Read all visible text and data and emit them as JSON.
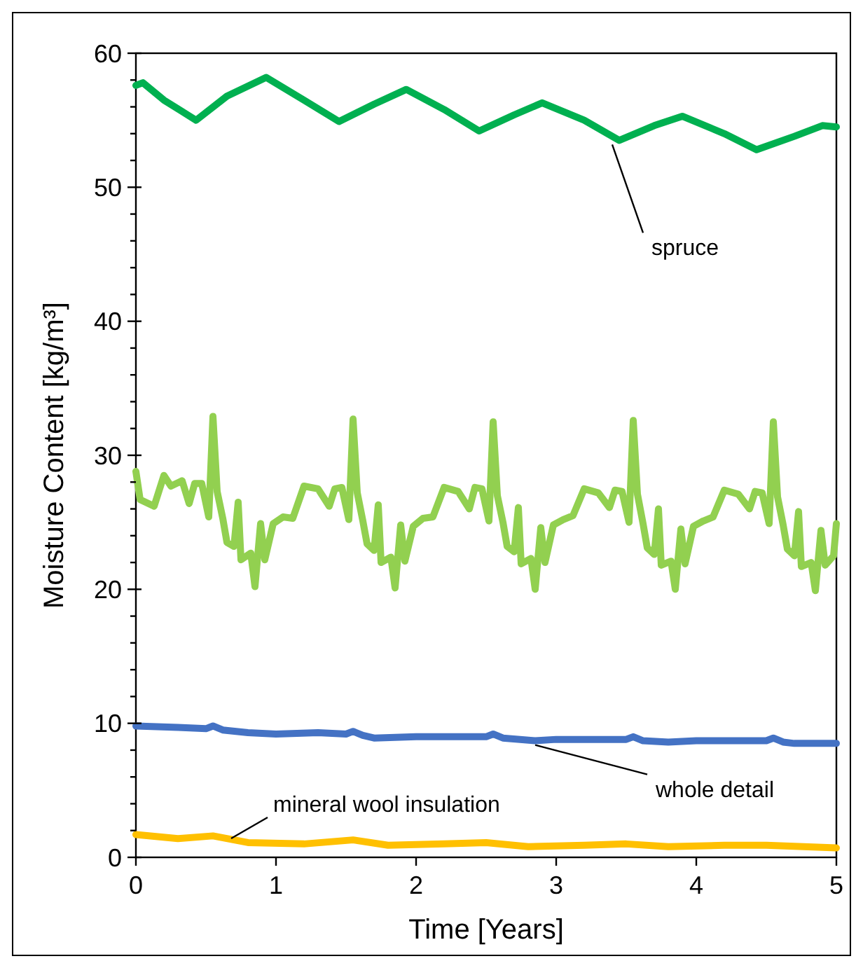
{
  "chart_data": {
    "type": "line",
    "xlabel": "Time [Years]",
    "ylabel": "Moisture Content [kg/m³]",
    "xlim": [
      0,
      5
    ],
    "xticks": [
      0,
      1,
      2,
      3,
      4,
      5
    ],
    "ylim": [
      0,
      60
    ],
    "yticks": [
      0,
      {
        "value": 2,
        "label": null
      },
      {
        "value": 4,
        "label": null
      },
      {
        "value": 6,
        "label": null
      },
      {
        "value": 8,
        "label": null
      },
      10,
      {
        "value": 12,
        "label": null
      },
      {
        "value": 14,
        "label": null
      },
      {
        "value": 16,
        "label": null
      },
      {
        "value": 18,
        "label": null
      },
      20,
      {
        "value": 22,
        "label": null
      },
      {
        "value": 24,
        "label": null
      },
      {
        "value": 26,
        "label": null
      },
      {
        "value": 28,
        "label": null
      },
      30,
      {
        "value": 32,
        "label": null
      },
      {
        "value": 34,
        "label": null
      },
      {
        "value": 36,
        "label": null
      },
      {
        "value": 38,
        "label": null
      },
      40,
      {
        "value": 42,
        "label": null
      },
      {
        "value": 44,
        "label": null
      },
      {
        "value": 46,
        "label": null
      },
      {
        "value": 48,
        "label": null
      },
      50,
      {
        "value": 52,
        "label": null
      },
      {
        "value": 54,
        "label": null
      },
      {
        "value": 56,
        "label": null
      },
      {
        "value": 58,
        "label": null
      },
      60
    ],
    "grid": false,
    "marker": "none",
    "line_style": "solid",
    "series": [
      {
        "name": "spruce",
        "color": "#00b050",
        "x": [
          0,
          0.05,
          0.2,
          0.43,
          0.65,
          0.93,
          1.2,
          1.45,
          1.7,
          1.93,
          2.2,
          2.45,
          2.7,
          2.9,
          3.2,
          3.45,
          3.7,
          3.9,
          4.2,
          4.43,
          4.7,
          4.9,
          5
        ],
        "values": [
          57.6,
          57.8,
          56.5,
          55.0,
          56.8,
          58.2,
          56.5,
          54.9,
          56.2,
          57.3,
          55.8,
          54.2,
          55.4,
          56.3,
          55.0,
          53.5,
          54.6,
          55.3,
          54.0,
          52.8,
          53.8,
          54.6,
          54.5
        ]
      },
      {
        "color": "#92d050",
        "x": [
          0,
          0.03,
          0.13,
          0.2,
          0.25,
          0.33,
          0.38,
          0.42,
          0.47,
          0.52,
          0.55,
          0.58,
          0.62,
          0.65,
          0.7,
          0.73,
          0.75,
          0.82,
          0.85,
          0.89,
          0.92,
          0.98,
          1.05,
          1.12,
          1.2,
          1.3,
          1.38,
          1.42,
          1.47,
          1.52,
          1.55,
          1.58,
          1.62,
          1.65,
          1.7,
          1.73,
          1.75,
          1.82,
          1.85,
          1.89,
          1.92,
          1.98,
          2.05,
          2.12,
          2.2,
          2.3,
          2.38,
          2.42,
          2.47,
          2.52,
          2.55,
          2.58,
          2.62,
          2.65,
          2.7,
          2.73,
          2.75,
          2.82,
          2.85,
          2.89,
          2.92,
          2.98,
          3.05,
          3.12,
          3.2,
          3.3,
          3.38,
          3.42,
          3.47,
          3.52,
          3.55,
          3.58,
          3.62,
          3.65,
          3.7,
          3.73,
          3.75,
          3.82,
          3.85,
          3.89,
          3.92,
          3.98,
          4.05,
          4.12,
          4.2,
          4.3,
          4.38,
          4.42,
          4.47,
          4.52,
          4.55,
          4.58,
          4.62,
          4.65,
          4.7,
          4.73,
          4.75,
          4.82,
          4.85,
          4.89,
          4.92,
          4.98,
          5
        ],
        "values": [
          28.8,
          26.7,
          26.2,
          28.5,
          27.7,
          28.1,
          26.4,
          27.9,
          27.9,
          25.4,
          32.9,
          27.3,
          25.3,
          23.5,
          23.2,
          26.5,
          22.2,
          22.7,
          20.2,
          24.9,
          22.2,
          24.9,
          25.4,
          25.3,
          27.7,
          27.5,
          26.2,
          27.5,
          27.6,
          25.2,
          32.7,
          27.2,
          25.1,
          23.4,
          22.9,
          26.3,
          22.0,
          22.4,
          20.1,
          24.8,
          22.1,
          24.7,
          25.3,
          25.4,
          27.6,
          27.3,
          26.0,
          27.6,
          27.5,
          25.1,
          32.5,
          27.0,
          25.0,
          23.2,
          22.8,
          26.1,
          21.9,
          22.3,
          20.0,
          24.6,
          22.0,
          24.8,
          25.2,
          25.5,
          27.5,
          27.2,
          26.1,
          27.4,
          27.3,
          25.0,
          32.6,
          27.1,
          24.9,
          23.1,
          22.6,
          26.0,
          21.8,
          22.1,
          20.0,
          24.5,
          21.9,
          24.7,
          25.1,
          25.4,
          27.4,
          27.1,
          26.0,
          27.3,
          27.2,
          24.9,
          32.5,
          26.9,
          24.8,
          23.0,
          22.5,
          25.8,
          21.7,
          22.0,
          19.9,
          24.4,
          21.8,
          22.5,
          24.9
        ]
      },
      {
        "name": "whole detail",
        "color": "#4472c4",
        "x": [
          0,
          0.3,
          0.5,
          0.55,
          0.62,
          0.8,
          1.0,
          1.3,
          1.5,
          1.55,
          1.62,
          1.7,
          2.0,
          2.3,
          2.5,
          2.55,
          2.62,
          2.85,
          3.0,
          3.3,
          3.5,
          3.55,
          3.62,
          3.8,
          4.0,
          4.3,
          4.5,
          4.55,
          4.62,
          4.7,
          5
        ],
        "values": [
          9.8,
          9.7,
          9.6,
          9.8,
          9.5,
          9.3,
          9.2,
          9.3,
          9.2,
          9.4,
          9.1,
          8.9,
          9.0,
          9.0,
          9.0,
          9.2,
          8.9,
          8.7,
          8.8,
          8.8,
          8.8,
          9.0,
          8.7,
          8.6,
          8.7,
          8.7,
          8.7,
          8.9,
          8.6,
          8.5,
          8.5
        ]
      },
      {
        "name": "mineral wool insulation",
        "color": "#ffc000",
        "x": [
          0,
          0.3,
          0.55,
          0.8,
          1.2,
          1.55,
          1.8,
          2.2,
          2.5,
          2.8,
          3.2,
          3.5,
          3.8,
          4.2,
          4.5,
          5
        ],
        "values": [
          1.7,
          1.4,
          1.6,
          1.1,
          1.0,
          1.3,
          0.9,
          1.0,
          1.1,
          0.8,
          0.9,
          1.0,
          0.8,
          0.9,
          0.9,
          0.7
        ]
      }
    ]
  }
}
